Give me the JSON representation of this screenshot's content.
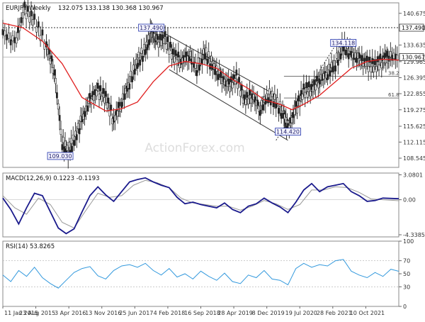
{
  "chart_data": [
    {
      "type": "candlestick",
      "title": "EURJPY,Weekly",
      "ohlc_readout": "132.075 133.138 130.368 130.967",
      "ylim": [
        106.5,
        143.0
      ],
      "yticks": [
        "140.675",
        "137.490",
        "133.635",
        "129.965",
        "126.395",
        "122.855",
        "119.275",
        "115.625",
        "112.115",
        "108.545"
      ],
      "ytick_values": [
        140.675,
        137.49,
        133.635,
        129.965,
        126.395,
        122.855,
        119.275,
        115.625,
        112.115,
        108.545
      ],
      "current_price": "130.967",
      "current_price_value": 130.967,
      "reference_line": {
        "label": "137.490",
        "value": 137.49
      },
      "fib_levels": [
        {
          "label": "38.2",
          "value": 126.7
        },
        {
          "label": "61.8",
          "value": 121.9
        }
      ],
      "callouts": [
        {
          "label": "137.490",
          "t": 0.375,
          "value": 137.49
        },
        {
          "label": "109.030",
          "t": 0.145,
          "value": 109.03
        },
        {
          "label": "114.420",
          "t": 0.72,
          "value": 114.42
        },
        {
          "label": "134.118",
          "t": 0.86,
          "value": 134.118
        }
      ],
      "price_path": [
        [
          0.0,
          136.5
        ],
        [
          0.03,
          134.0
        ],
        [
          0.055,
          141.5
        ],
        [
          0.08,
          139.0
        ],
        [
          0.11,
          133.5
        ],
        [
          0.13,
          128.0
        ],
        [
          0.15,
          112.0
        ],
        [
          0.165,
          110.0
        ],
        [
          0.18,
          112.5
        ],
        [
          0.2,
          117.0
        ],
        [
          0.22,
          121.5
        ],
        [
          0.24,
          123.5
        ],
        [
          0.26,
          122.0
        ],
        [
          0.28,
          117.0
        ],
        [
          0.3,
          121.0
        ],
        [
          0.32,
          125.5
        ],
        [
          0.34,
          130.0
        ],
        [
          0.36,
          132.5
        ],
        [
          0.375,
          136.5
        ],
        [
          0.39,
          134.5
        ],
        [
          0.41,
          135.0
        ],
        [
          0.43,
          131.5
        ],
        [
          0.45,
          130.0
        ],
        [
          0.47,
          131.5
        ],
        [
          0.49,
          128.5
        ],
        [
          0.51,
          132.0
        ],
        [
          0.53,
          129.0
        ],
        [
          0.55,
          126.5
        ],
        [
          0.57,
          124.5
        ],
        [
          0.59,
          126.5
        ],
        [
          0.61,
          121.5
        ],
        [
          0.63,
          122.5
        ],
        [
          0.65,
          119.5
        ],
        [
          0.67,
          122.5
        ],
        [
          0.69,
          121.0
        ],
        [
          0.71,
          118.0
        ],
        [
          0.72,
          115.0
        ],
        [
          0.74,
          119.5
        ],
        [
          0.76,
          123.5
        ],
        [
          0.78,
          124.0
        ],
        [
          0.8,
          126.0
        ],
        [
          0.82,
          127.5
        ],
        [
          0.84,
          129.5
        ],
        [
          0.86,
          133.5
        ],
        [
          0.88,
          131.5
        ],
        [
          0.9,
          130.5
        ],
        [
          0.92,
          129.5
        ],
        [
          0.94,
          129.0
        ],
        [
          0.96,
          130.5
        ],
        [
          0.975,
          131.2
        ],
        [
          1.0,
          130.97
        ]
      ],
      "sma_path": [
        [
          0.0,
          138.5
        ],
        [
          0.05,
          137.5
        ],
        [
          0.1,
          134.5
        ],
        [
          0.15,
          129.5
        ],
        [
          0.2,
          122.0
        ],
        [
          0.23,
          120.5
        ],
        [
          0.26,
          119.0
        ],
        [
          0.3,
          119.5
        ],
        [
          0.34,
          121.0
        ],
        [
          0.38,
          125.5
        ],
        [
          0.42,
          129.0
        ],
        [
          0.46,
          130.0
        ],
        [
          0.5,
          129.5
        ],
        [
          0.54,
          128.5
        ],
        [
          0.58,
          126.0
        ],
        [
          0.62,
          124.0
        ],
        [
          0.66,
          121.5
        ],
        [
          0.7,
          120.5
        ],
        [
          0.73,
          119.3
        ],
        [
          0.76,
          120.5
        ],
        [
          0.8,
          122.5
        ],
        [
          0.84,
          125.5
        ],
        [
          0.88,
          128.5
        ],
        [
          0.92,
          130.0
        ],
        [
          0.96,
          130.5
        ],
        [
          1.0,
          130.3
        ]
      ],
      "channel_upper": [
        [
          0.38,
          137.6
        ],
        [
          0.69,
          122.5
        ]
      ],
      "channel_lower": [
        [
          0.42,
          128.2
        ],
        [
          0.72,
          112.5
        ]
      ],
      "trend_support": [
        [
          0.69,
          112.5
        ],
        [
          0.85,
          135.0
        ]
      ],
      "watermark": "ActionForex.com"
    },
    {
      "type": "line",
      "title": "MACD(12,26,9) 0.1223 -0.1193",
      "ylim": [
        -4.6,
        3.3
      ],
      "yticks": [
        "3.0801",
        "0.00",
        "-4.3385"
      ],
      "ytick_values": [
        3.0801,
        0.0,
        -4.3385
      ],
      "zero_value": 0,
      "series": [
        {
          "role": "macd",
          "points": [
            [
              0.0,
              0.2
            ],
            [
              0.02,
              -1.2
            ],
            [
              0.04,
              -3.0
            ],
            [
              0.06,
              -1.0
            ],
            [
              0.08,
              0.8
            ],
            [
              0.1,
              0.5
            ],
            [
              0.12,
              -1.5
            ],
            [
              0.14,
              -3.5
            ],
            [
              0.16,
              -4.2
            ],
            [
              0.18,
              -3.6
            ],
            [
              0.2,
              -1.5
            ],
            [
              0.22,
              0.5
            ],
            [
              0.24,
              1.6
            ],
            [
              0.26,
              0.6
            ],
            [
              0.28,
              -0.2
            ],
            [
              0.3,
              1.0
            ],
            [
              0.32,
              2.2
            ],
            [
              0.34,
              2.5
            ],
            [
              0.36,
              2.7
            ],
            [
              0.38,
              2.2
            ],
            [
              0.4,
              1.8
            ],
            [
              0.42,
              1.5
            ],
            [
              0.44,
              0.3
            ],
            [
              0.46,
              -0.5
            ],
            [
              0.48,
              -0.3
            ],
            [
              0.5,
              -0.6
            ],
            [
              0.52,
              -0.8
            ],
            [
              0.54,
              -1.0
            ],
            [
              0.56,
              -0.4
            ],
            [
              0.58,
              -1.2
            ],
            [
              0.6,
              -1.6
            ],
            [
              0.62,
              -0.8
            ],
            [
              0.64,
              -0.5
            ],
            [
              0.66,
              0.2
            ],
            [
              0.68,
              -0.4
            ],
            [
              0.7,
              -0.9
            ],
            [
              0.72,
              -1.6
            ],
            [
              0.74,
              -0.3
            ],
            [
              0.76,
              1.2
            ],
            [
              0.78,
              2.0
            ],
            [
              0.8,
              1.0
            ],
            [
              0.82,
              1.6
            ],
            [
              0.84,
              1.8
            ],
            [
              0.86,
              2.0
            ],
            [
              0.88,
              1.0
            ],
            [
              0.9,
              0.5
            ],
            [
              0.92,
              -0.2
            ],
            [
              0.94,
              -0.1
            ],
            [
              0.96,
              0.2
            ],
            [
              1.0,
              0.12
            ]
          ]
        },
        {
          "role": "signal",
          "points": [
            [
              0.0,
              0.5
            ],
            [
              0.03,
              -1.0
            ],
            [
              0.06,
              -1.8
            ],
            [
              0.09,
              0.2
            ],
            [
              0.12,
              -0.6
            ],
            [
              0.15,
              -2.8
            ],
            [
              0.18,
              -3.5
            ],
            [
              0.21,
              -1.3
            ],
            [
              0.24,
              0.8
            ],
            [
              0.27,
              0.3
            ],
            [
              0.3,
              0.5
            ],
            [
              0.33,
              1.8
            ],
            [
              0.36,
              2.4
            ],
            [
              0.39,
              2.1
            ],
            [
              0.42,
              1.5
            ],
            [
              0.45,
              0.2
            ],
            [
              0.48,
              -0.4
            ],
            [
              0.51,
              -0.6
            ],
            [
              0.54,
              -0.8
            ],
            [
              0.57,
              -0.8
            ],
            [
              0.6,
              -1.3
            ],
            [
              0.63,
              -0.8
            ],
            [
              0.66,
              -0.1
            ],
            [
              0.69,
              -0.5
            ],
            [
              0.72,
              -1.2
            ],
            [
              0.75,
              -0.6
            ],
            [
              0.78,
              1.2
            ],
            [
              0.81,
              1.2
            ],
            [
              0.84,
              1.6
            ],
            [
              0.87,
              1.5
            ],
            [
              0.9,
              0.9
            ],
            [
              0.93,
              0.1
            ],
            [
              0.96,
              0.0
            ],
            [
              1.0,
              -0.12
            ]
          ]
        }
      ]
    },
    {
      "type": "line",
      "title": "RSI(14) 53.8265",
      "ylim": [
        0,
        100
      ],
      "yticks": [
        "100",
        "70",
        "50",
        "30",
        "0"
      ],
      "ytick_values": [
        100,
        70,
        50,
        30,
        0
      ],
      "levels": [
        70,
        30
      ],
      "series": [
        {
          "role": "rsi",
          "points": [
            [
              0.0,
              48
            ],
            [
              0.02,
              38
            ],
            [
              0.04,
              55
            ],
            [
              0.06,
              46
            ],
            [
              0.08,
              60
            ],
            [
              0.1,
              44
            ],
            [
              0.12,
              35
            ],
            [
              0.14,
              28
            ],
            [
              0.16,
              40
            ],
            [
              0.18,
              52
            ],
            [
              0.2,
              58
            ],
            [
              0.22,
              61
            ],
            [
              0.24,
              47
            ],
            [
              0.26,
              42
            ],
            [
              0.28,
              55
            ],
            [
              0.3,
              62
            ],
            [
              0.32,
              64
            ],
            [
              0.34,
              60
            ],
            [
              0.36,
              66
            ],
            [
              0.38,
              55
            ],
            [
              0.4,
              48
            ],
            [
              0.42,
              58
            ],
            [
              0.44,
              45
            ],
            [
              0.46,
              50
            ],
            [
              0.48,
              42
            ],
            [
              0.5,
              54
            ],
            [
              0.52,
              46
            ],
            [
              0.54,
              40
            ],
            [
              0.56,
              51
            ],
            [
              0.58,
              38
            ],
            [
              0.6,
              35
            ],
            [
              0.62,
              48
            ],
            [
              0.64,
              44
            ],
            [
              0.66,
              55
            ],
            [
              0.68,
              42
            ],
            [
              0.7,
              40
            ],
            [
              0.72,
              33
            ],
            [
              0.74,
              58
            ],
            [
              0.76,
              66
            ],
            [
              0.78,
              60
            ],
            [
              0.8,
              64
            ],
            [
              0.82,
              62
            ],
            [
              0.84,
              70
            ],
            [
              0.86,
              72
            ],
            [
              0.88,
              54
            ],
            [
              0.9,
              48
            ],
            [
              0.92,
              44
            ],
            [
              0.94,
              52
            ],
            [
              0.96,
              46
            ],
            [
              0.98,
              57
            ],
            [
              1.0,
              53.8
            ]
          ]
        }
      ]
    }
  ],
  "x_axis": {
    "labels": [
      "11 Jan 2015",
      "23 Aug 2015",
      "3 Apr 2016",
      "13 Nov 2016",
      "25 Jun 2017",
      "4 Feb 2018",
      "16 Sep 2018",
      "28 Apr 2019",
      "8 Dec 2019",
      "19 Jul 2020",
      "28 Feb 2021",
      "10 Oct 2021"
    ],
    "positions": [
      0.0,
      0.0833,
      0.1667,
      0.25,
      0.3333,
      0.4167,
      0.5,
      0.5833,
      0.6667,
      0.75,
      0.8333,
      0.9167
    ]
  },
  "colors": {
    "price": "#222222",
    "sma": "#e02020",
    "channel": "#333333",
    "macd": "#1a1a8c",
    "signal": "#999999",
    "rsi": "#3399dd",
    "grid": "#cccccc",
    "callout_bg": "#f4f4ff",
    "callout_border": "#2233aa",
    "axis_text": "#333333",
    "watermark": "#dddddd"
  }
}
